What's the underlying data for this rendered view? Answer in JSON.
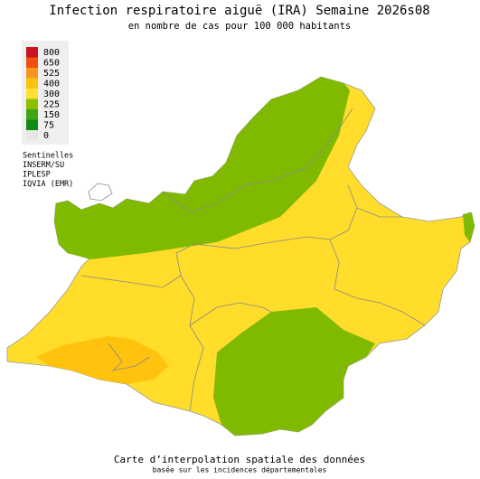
{
  "title": "Infection respiratoire aiguë (IRA) Semaine 2026s08",
  "subtitle": "en nombre de cas pour 100 000 habitants",
  "legend": {
    "items": [
      {
        "value": 800,
        "color": "#c8141e"
      },
      {
        "value": 650,
        "color": "#f0500f"
      },
      {
        "value": 525,
        "color": "#f7941d"
      },
      {
        "value": 400,
        "color": "#ffc20e"
      },
      {
        "value": 300,
        "color": "#ffe033"
      },
      {
        "value": 225,
        "color": "#8cbf00"
      },
      {
        "value": 150,
        "color": "#3fa612"
      },
      {
        "value": 75,
        "color": "#0f8a14"
      },
      {
        "value": 0,
        "color": "#e6e6e6"
      }
    ]
  },
  "sources": [
    "Sentinelles",
    "INSERM/SU",
    "IPLESP",
    "IQVIA (EMR)"
  ],
  "footer": {
    "title": "Carte d’interpolation spatiale des données",
    "subtitle": "basée sur les incidences départementales"
  }
}
